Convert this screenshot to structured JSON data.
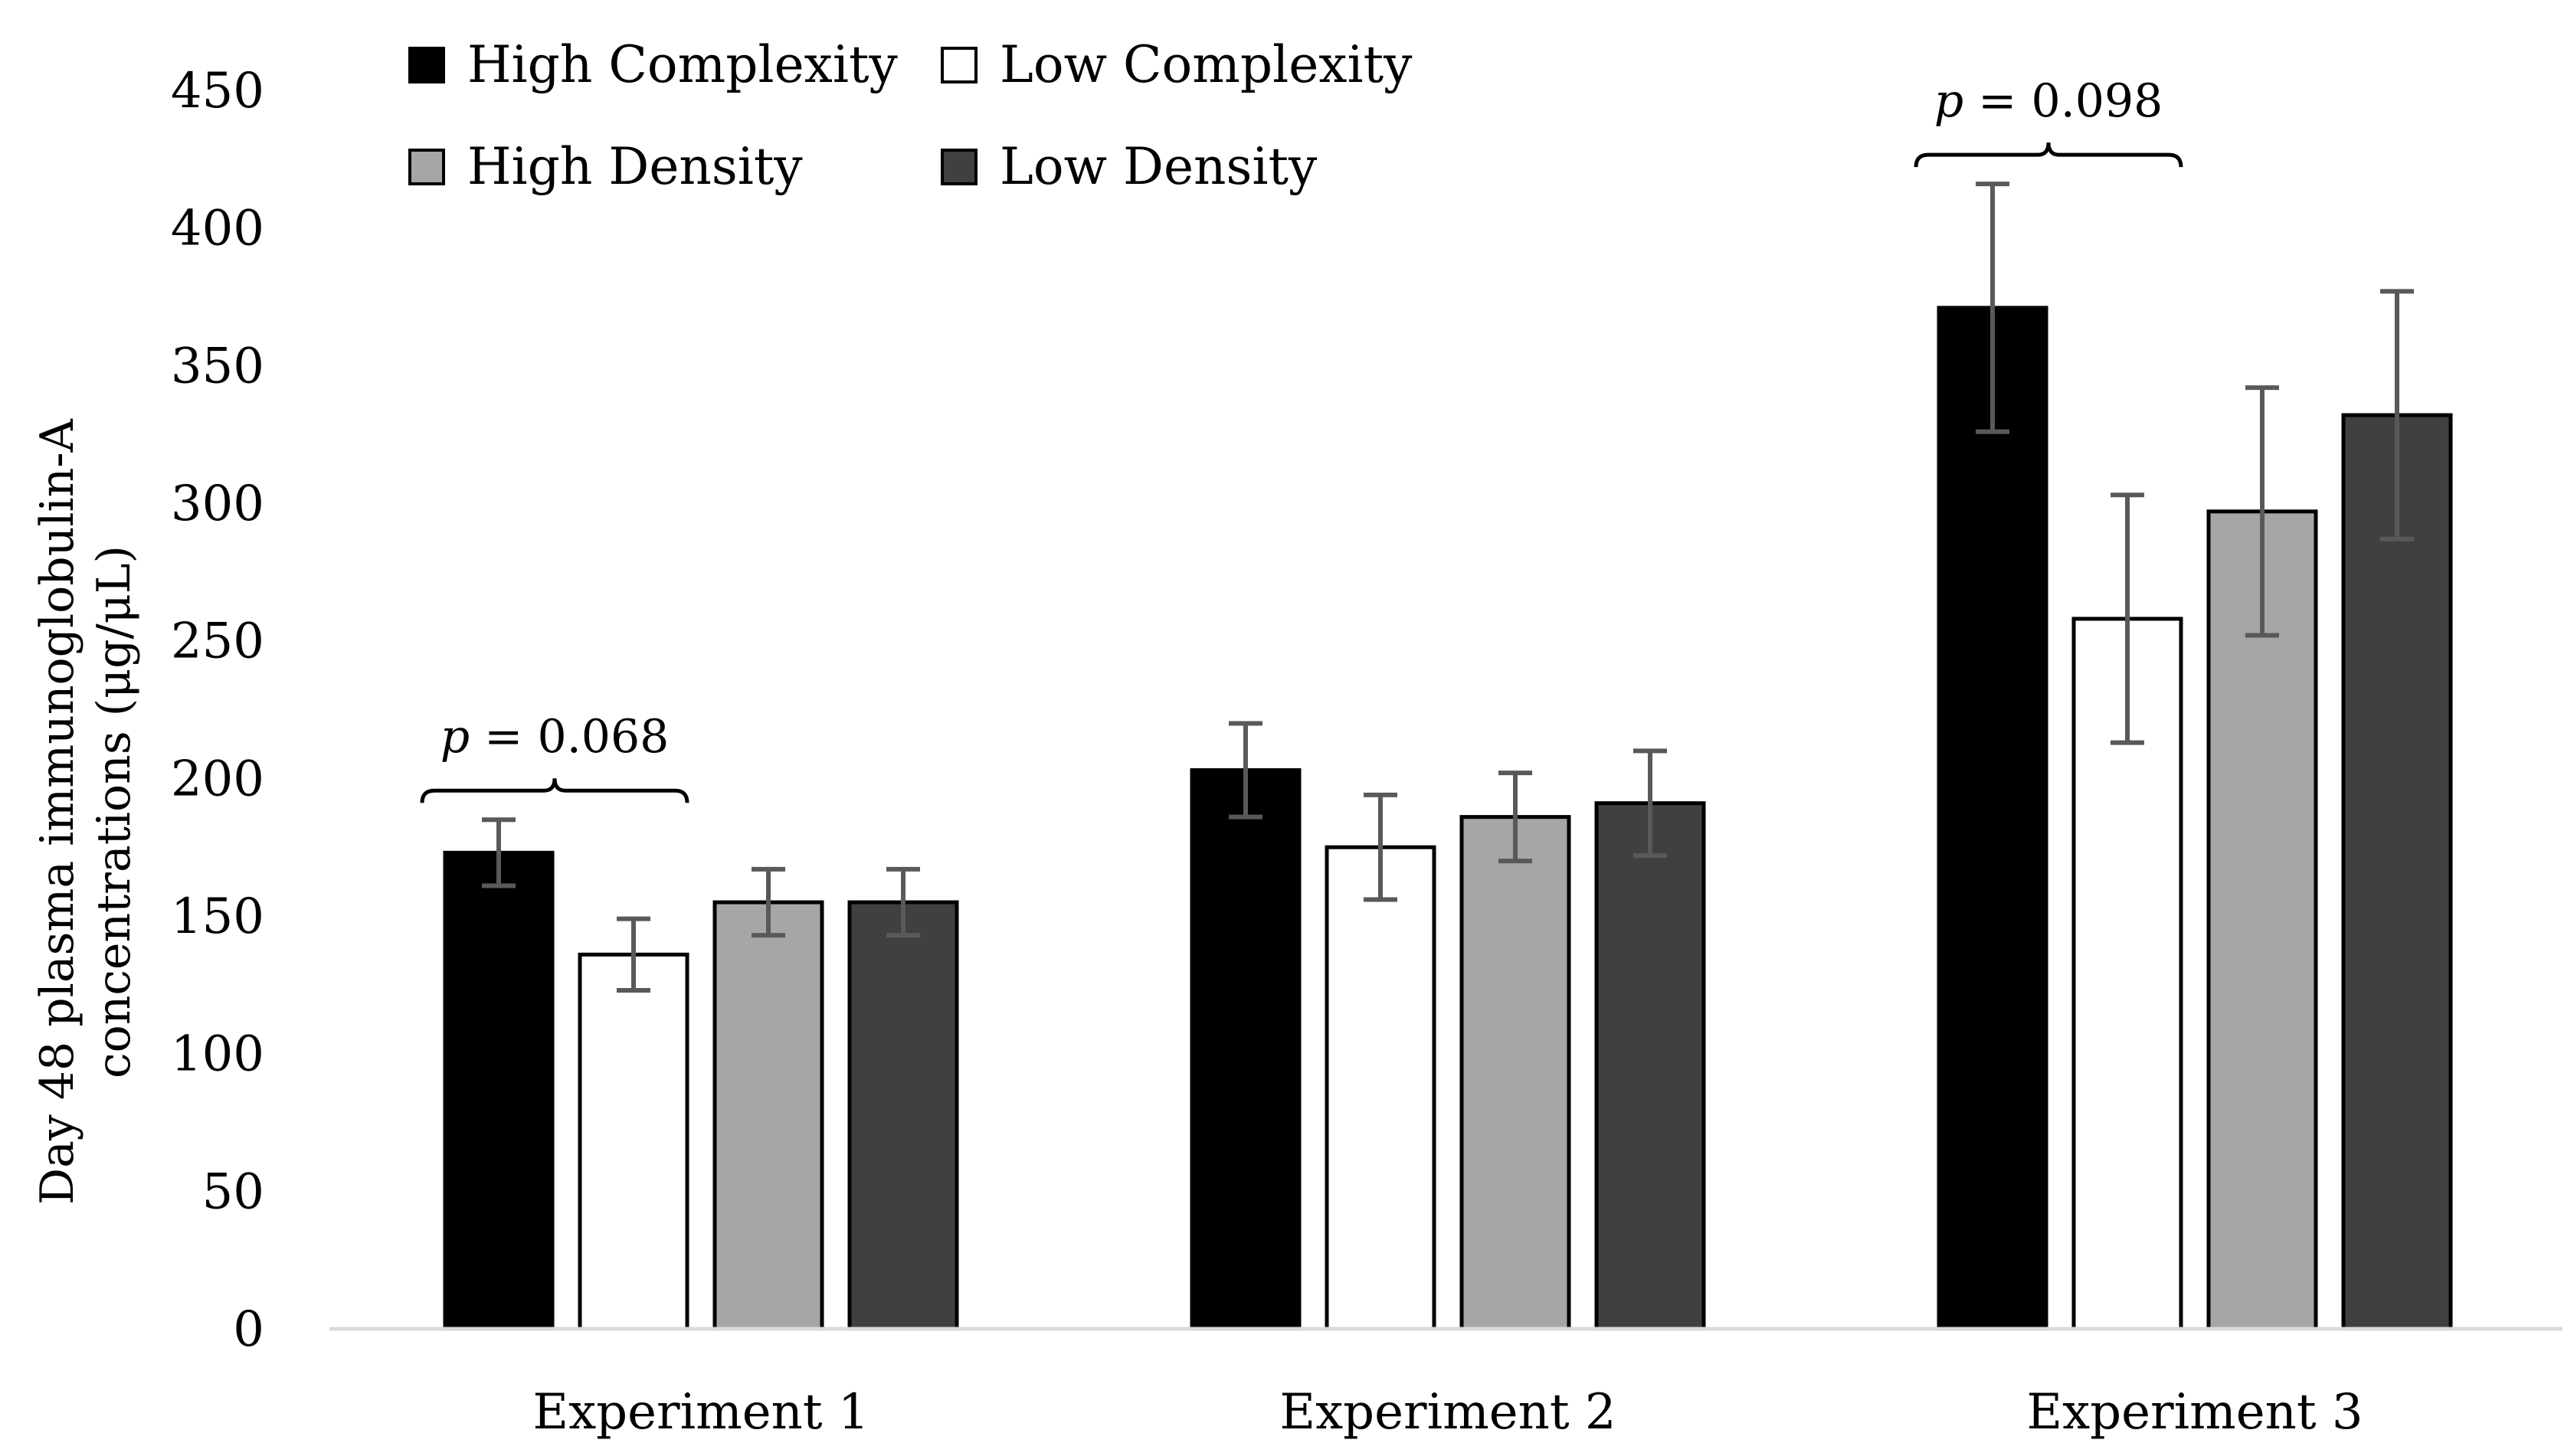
{
  "chart_data": {
    "type": "bar",
    "categories": [
      "Experiment 1",
      "Experiment 2",
      "Experiment 3"
    ],
    "series": [
      {
        "name": "High Complexity",
        "color": "#000000",
        "values": [
          173,
          203,
          371
        ],
        "errors": [
          12,
          17,
          45
        ]
      },
      {
        "name": "Low Complexity",
        "color": "#ffffff",
        "values": [
          136,
          175,
          258
        ],
        "errors": [
          13,
          19,
          45
        ]
      },
      {
        "name": "High Density",
        "color": "#a6a6a6",
        "values": [
          155,
          186,
          297
        ],
        "errors": [
          12,
          16,
          45
        ]
      },
      {
        "name": "Low Density",
        "color": "#404040",
        "values": [
          155,
          191,
          332
        ],
        "errors": [
          12,
          19,
          45
        ]
      }
    ],
    "ylim": [
      0,
      450
    ],
    "yticks": [
      0,
      50,
      100,
      150,
      200,
      250,
      300,
      350,
      400,
      450
    ],
    "ylabel_line1": "Day 48 plasma immunoglobulin-A",
    "ylabel_line2": "concentrations  (μg/μL)",
    "xlabel": "",
    "grid": false,
    "legend_position": "top-left",
    "annotations": [
      {
        "category": "Experiment 1",
        "p_symbol": "p",
        "text": " = 0.068",
        "spans": [
          "High Complexity",
          "Low Complexity"
        ]
      },
      {
        "category": "Experiment 3",
        "p_symbol": "p",
        "text": " = 0.098",
        "spans": [
          "High Complexity",
          "Low Complexity"
        ]
      }
    ]
  }
}
